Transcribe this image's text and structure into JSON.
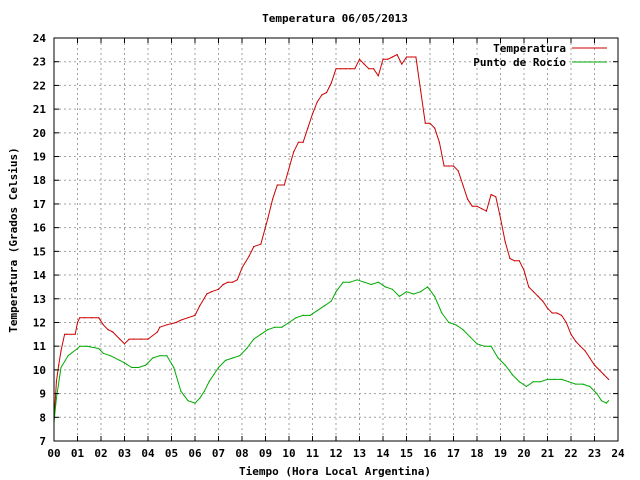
{
  "chart_data": {
    "type": "line",
    "title": "Temperatura 06/05/2013",
    "xlabel": "Tiempo (Hora Local Argentina)",
    "ylabel": "Temperatura (Grados Celsius)",
    "xlim": [
      0,
      24
    ],
    "ylim": [
      7,
      24
    ],
    "x_ticks": [
      "00",
      "01",
      "02",
      "03",
      "04",
      "05",
      "06",
      "07",
      "08",
      "09",
      "10",
      "11",
      "12",
      "13",
      "14",
      "15",
      "16",
      "17",
      "18",
      "19",
      "20",
      "21",
      "22",
      "23",
      "24"
    ],
    "y_ticks": [
      "7",
      "8",
      "9",
      "10",
      "11",
      "12",
      "13",
      "14",
      "15",
      "16",
      "17",
      "18",
      "19",
      "20",
      "21",
      "22",
      "23",
      "24"
    ],
    "grid": true,
    "legend_position": "top-right",
    "series": [
      {
        "name": "Temperatura",
        "color": "#cc0000",
        "x": [
          0.0,
          0.1,
          0.2,
          0.3,
          0.45,
          0.55,
          0.9,
          1.0,
          1.1,
          1.3,
          1.6,
          1.9,
          2.1,
          2.3,
          2.5,
          2.8,
          3.0,
          3.2,
          3.4,
          3.7,
          4.0,
          4.4,
          4.5,
          4.8,
          5.2,
          5.4,
          5.7,
          6.0,
          6.2,
          6.5,
          6.7,
          7.0,
          7.2,
          7.4,
          7.6,
          7.8,
          8.0,
          8.3,
          8.5,
          8.8,
          9.1,
          9.3,
          9.5,
          9.8,
          10.0,
          10.2,
          10.4,
          10.6,
          10.8,
          11.0,
          11.2,
          11.4,
          11.6,
          11.8,
          12.0,
          12.2,
          12.4,
          12.6,
          12.8,
          13.0,
          13.2,
          13.4,
          13.6,
          13.8,
          14.0,
          14.2,
          14.4,
          14.6,
          14.8,
          15.0,
          15.2,
          15.4,
          15.6,
          15.8,
          16.0,
          16.2,
          16.4,
          16.6,
          16.8,
          17.0,
          17.2,
          17.4,
          17.6,
          17.8,
          18.0,
          18.2,
          18.4,
          18.6,
          18.8,
          19.0,
          19.2,
          19.4,
          19.6,
          19.8,
          20.0,
          20.2,
          20.4,
          20.6,
          20.8,
          21.0,
          21.2,
          21.4,
          21.6,
          21.8,
          22.0,
          22.2,
          22.4,
          22.6,
          22.8,
          23.0,
          23.2,
          23.4,
          23.6
        ],
        "values": [
          7.8,
          9.5,
          10.2,
          10.8,
          11.5,
          11.5,
          11.5,
          12.0,
          12.2,
          12.2,
          12.2,
          12.2,
          11.9,
          11.7,
          11.6,
          11.3,
          11.1,
          11.3,
          11.3,
          11.3,
          11.3,
          11.6,
          11.8,
          11.9,
          12.0,
          12.1,
          12.2,
          12.3,
          12.7,
          13.2,
          13.3,
          13.4,
          13.6,
          13.7,
          13.7,
          13.8,
          14.3,
          14.8,
          15.2,
          15.3,
          16.4,
          17.2,
          17.8,
          17.8,
          18.5,
          19.2,
          19.6,
          19.6,
          20.2,
          20.8,
          21.3,
          21.6,
          21.7,
          22.1,
          22.7,
          22.7,
          22.7,
          22.7,
          22.7,
          23.1,
          22.9,
          22.7,
          22.7,
          22.4,
          23.1,
          23.1,
          23.2,
          23.3,
          22.9,
          23.2,
          23.2,
          23.2,
          21.8,
          20.4,
          20.4,
          20.2,
          19.6,
          18.6,
          18.6,
          18.6,
          18.4,
          17.8,
          17.2,
          16.9,
          16.9,
          16.8,
          16.7,
          17.4,
          17.3,
          16.4,
          15.4,
          14.7,
          14.6,
          14.6,
          14.2,
          13.5,
          13.3,
          13.1,
          12.9,
          12.6,
          12.4,
          12.4,
          12.3,
          12.0,
          11.5,
          11.2,
          11.0,
          10.8,
          10.5,
          10.2,
          10.0,
          9.8,
          9.6
        ],
        "note_end": 23.6
      },
      {
        "name": "Punto de Rocío",
        "color": "#00aa00",
        "x": [
          0.0,
          0.1,
          0.3,
          0.6,
          1.0,
          1.1,
          1.4,
          1.9,
          2.1,
          2.4,
          2.8,
          3.0,
          3.3,
          3.6,
          3.9,
          4.2,
          4.5,
          4.8,
          5.1,
          5.4,
          5.7,
          6.0,
          6.2,
          6.4,
          6.6,
          6.8,
          7.0,
          7.3,
          7.6,
          7.9,
          8.2,
          8.5,
          8.8,
          9.1,
          9.4,
          9.7,
          10.0,
          10.3,
          10.6,
          10.9,
          11.2,
          11.5,
          11.8,
          12.0,
          12.3,
          12.6,
          12.9,
          13.2,
          13.5,
          13.8,
          14.1,
          14.4,
          14.7,
          15.0,
          15.3,
          15.6,
          15.9,
          16.2,
          16.5,
          16.8,
          17.1,
          17.4,
          17.7,
          18.0,
          18.3,
          18.6,
          18.9,
          19.2,
          19.5,
          19.8,
          20.1,
          20.4,
          20.7,
          21.0,
          21.3,
          21.6,
          21.9,
          22.2,
          22.5,
          22.8,
          23.1,
          23.3,
          23.5,
          23.6
        ],
        "values": [
          7.8,
          8.8,
          10.1,
          10.6,
          10.9,
          11.0,
          11.0,
          10.9,
          10.7,
          10.6,
          10.4,
          10.3,
          10.1,
          10.1,
          10.2,
          10.5,
          10.6,
          10.6,
          10.1,
          9.1,
          8.7,
          8.6,
          8.8,
          9.1,
          9.5,
          9.8,
          10.1,
          10.4,
          10.5,
          10.6,
          10.9,
          11.3,
          11.5,
          11.7,
          11.8,
          11.8,
          12.0,
          12.2,
          12.3,
          12.3,
          12.5,
          12.7,
          12.9,
          13.3,
          13.7,
          13.7,
          13.8,
          13.7,
          13.6,
          13.7,
          13.5,
          13.4,
          13.1,
          13.3,
          13.2,
          13.3,
          13.5,
          13.1,
          12.4,
          12.0,
          11.9,
          11.7,
          11.4,
          11.1,
          11.0,
          11.0,
          10.5,
          10.2,
          9.8,
          9.5,
          9.3,
          9.5,
          9.5,
          9.6,
          9.6,
          9.6,
          9.5,
          9.4,
          9.4,
          9.3,
          9.0,
          8.7,
          8.6,
          8.7
        ]
      }
    ]
  }
}
